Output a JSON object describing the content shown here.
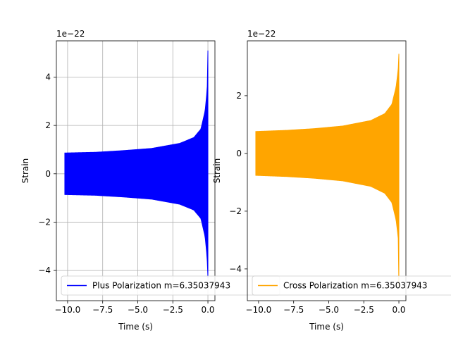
{
  "chart_data": [
    {
      "type": "area",
      "title": "",
      "xlabel": "Time (s)",
      "ylabel": "Strain",
      "offset_text": "1e−22",
      "xlim": [
        -10.8,
        0.5
      ],
      "ylim": [
        -5.25,
        5.5
      ],
      "xticks": [
        -10.0,
        -7.5,
        -5.0,
        -2.5,
        0.0
      ],
      "xtick_labels": [
        "−10.0",
        "−7.5",
        "−5.0",
        "−2.5",
        "0.0"
      ],
      "yticks": [
        -4,
        -2,
        0,
        2,
        4
      ],
      "ytick_labels": [
        "−4",
        "−2",
        "0",
        "2",
        "4"
      ],
      "grid": true,
      "legend_position": "lower center",
      "series": [
        {
          "name": "Plus Polarization m=6.35037943",
          "color": "#0000ff",
          "x_start": -10.2,
          "x_end": 0.0,
          "envelope": [
            [
              -10.2,
              0.86
            ],
            [
              -8.0,
              0.89
            ],
            [
              -6.0,
              0.96
            ],
            [
              -4.0,
              1.05
            ],
            [
              -2.0,
              1.26
            ],
            [
              -1.0,
              1.5
            ],
            [
              -0.5,
              1.85
            ],
            [
              -0.2,
              2.6
            ],
            [
              -0.05,
              3.5
            ],
            [
              0.0,
              5.1
            ]
          ],
          "min_value": -4.3
        }
      ]
    },
    {
      "type": "area",
      "title": "",
      "xlabel": "Time (s)",
      "ylabel": "Strain",
      "offset_text": "1e−22",
      "xlim": [
        -10.8,
        0.5
      ],
      "ylim": [
        -5.1,
        3.9
      ],
      "xticks": [
        -10.0,
        -7.5,
        -5.0,
        -2.5,
        0.0
      ],
      "xtick_labels": [
        "−10.0",
        "−7.5",
        "−5.0",
        "−2.5",
        "0.0"
      ],
      "yticks": [
        -4,
        -2,
        0,
        2
      ],
      "ytick_labels": [
        "−4",
        "−2",
        "0",
        "2"
      ],
      "grid": false,
      "legend_position": "lower center",
      "series": [
        {
          "name": "Cross Polarization m=6.35037943",
          "color": "#ffa500",
          "x_start": -10.2,
          "x_end": 0.0,
          "envelope": [
            [
              -10.2,
              0.76
            ],
            [
              -8.0,
              0.8
            ],
            [
              -6.0,
              0.86
            ],
            [
              -4.0,
              0.95
            ],
            [
              -2.0,
              1.14
            ],
            [
              -1.0,
              1.38
            ],
            [
              -0.5,
              1.7
            ],
            [
              -0.2,
              2.3
            ],
            [
              -0.05,
              2.9
            ],
            [
              0.0,
              3.45
            ]
          ],
          "min_value": -4.6
        }
      ]
    }
  ]
}
